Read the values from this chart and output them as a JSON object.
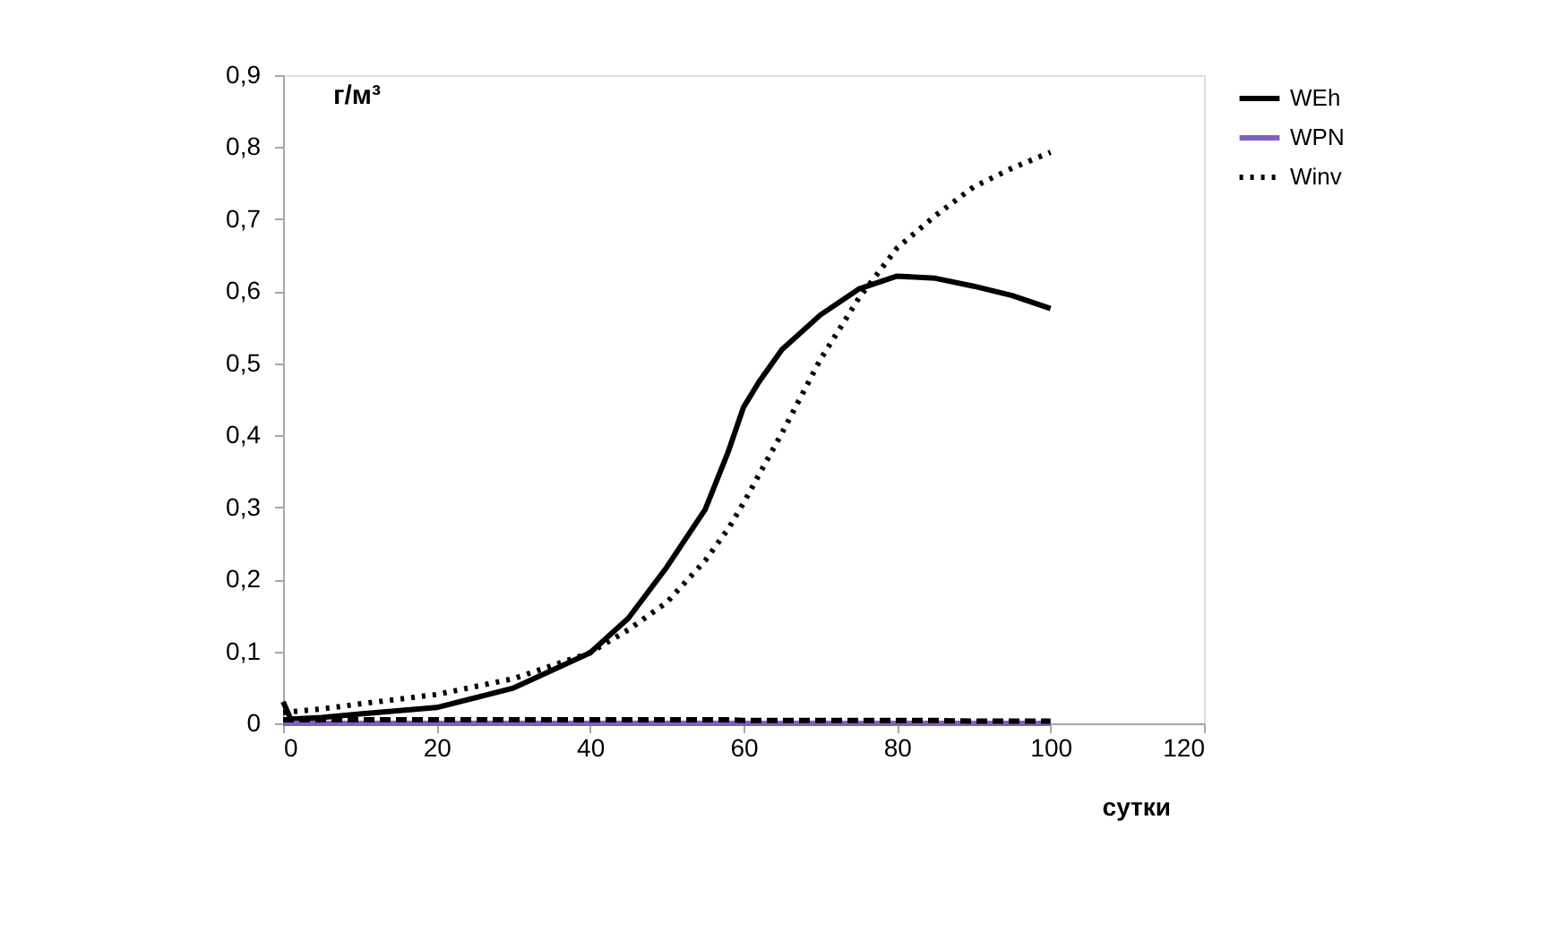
{
  "chart_data": {
    "type": "line",
    "xlabel": "сутки",
    "ylabel": "г/м³",
    "x": [
      0,
      1,
      5,
      10,
      20,
      30,
      40,
      45,
      50,
      55,
      58,
      60,
      62,
      65,
      70,
      75,
      80,
      85,
      90,
      95,
      100
    ],
    "series": [
      {
        "name": "WEh",
        "color": "#000000",
        "line_style": "solid",
        "values": [
          0.03,
          0.006,
          0.008,
          0.013,
          0.022,
          0.049,
          0.098,
          0.146,
          0.217,
          0.297,
          0.377,
          0.439,
          0.474,
          0.519,
          0.567,
          0.603,
          0.621,
          0.618,
          0.607,
          0.594,
          0.576
        ]
      },
      {
        "name": "WPN",
        "color": "#7f5fbf",
        "line_style": "solid",
        "values": [
          0,
          0,
          0,
          0,
          0,
          0,
          0,
          0,
          0,
          0,
          0,
          0,
          0,
          0,
          0,
          0,
          0,
          0,
          0,
          0,
          0
        ]
      },
      {
        "name": "Winv",
        "color": "#000000",
        "line_style": "dotted",
        "values": [
          0.015,
          0.016,
          0.02,
          0.027,
          0.04,
          0.062,
          0.098,
          0.13,
          0.168,
          0.226,
          0.27,
          0.306,
          0.345,
          0.403,
          0.505,
          0.59,
          0.66,
          0.705,
          0.745,
          0.771,
          0.793
        ]
      },
      {
        "color": "#000000",
        "line_style": "dashed",
        "values": [
          0.005,
          0.005,
          0.005,
          0.005,
          0.005,
          0.005,
          0.005,
          0.005,
          0.005,
          0.005,
          0.005,
          0.004,
          0.004,
          0.004,
          0.004,
          0.004,
          0.004,
          0.004,
          0.003,
          0.003,
          0.003
        ]
      }
    ],
    "xlim": [
      0,
      120
    ],
    "xticks": [
      0,
      20,
      40,
      60,
      80,
      100,
      120
    ],
    "ylim": [
      0,
      0.9
    ],
    "yticks": [
      {
        "value": 0,
        "label": "0"
      },
      {
        "value": 0.1,
        "label": "0,1"
      },
      {
        "value": 0.2,
        "label": "0,2"
      },
      {
        "value": 0.3,
        "label": "0,3"
      },
      {
        "value": 0.4,
        "label": "0,4"
      },
      {
        "value": 0.5,
        "label": "0,5"
      },
      {
        "value": 0.6,
        "label": "0,6"
      },
      {
        "value": 0.7,
        "label": "0,7"
      },
      {
        "value": 0.8,
        "label": "0,8"
      },
      {
        "value": 0.9,
        "label": "0,9"
      }
    ],
    "grid": false,
    "legend": "right",
    "marker": "none"
  }
}
